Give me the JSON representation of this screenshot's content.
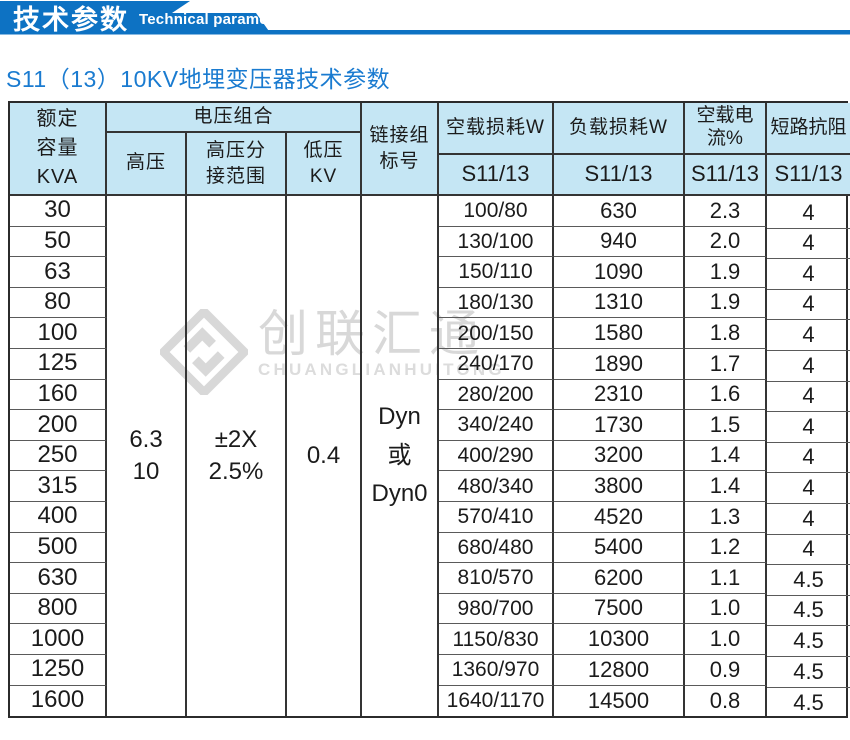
{
  "banner": {
    "title": "技术参数",
    "subtitle_en": "Technical parameter"
  },
  "page_title": "S11（13）10KV地埋变压器技术参数",
  "colors": {
    "banner_blue": "#0d72c3",
    "subtitle_blue": "#1a7bd0",
    "header_bg": "#c5e6f4",
    "border_dark": "#343434",
    "watermark_gray": "#d8d8d8"
  },
  "watermark": {
    "cn": "创联汇通",
    "en": "CHUANGLIANHUITONG"
  },
  "table": {
    "header": {
      "capacity": "额定\n容量\nKVA",
      "voltage_group": "电压组合",
      "hv": "高压",
      "hv_tap": "高压分\n接范围",
      "lv": "低压\nKV",
      "vector": "链接组\n标号",
      "noload_loss": "空载损耗W",
      "load_loss": "负载损耗W",
      "noload_current": "空载电流%",
      "impedance": "短路抗阻",
      "model": "S11/13"
    },
    "merged": {
      "hv": "6.3\n10",
      "hv_tap": "±2X\n2.5%",
      "lv": "0.4",
      "vector": "Dyn\n或\nDyn0"
    },
    "rows": [
      {
        "kva": "30",
        "noload": "100/80",
        "load": "630",
        "current": "2.3",
        "impedance": "4"
      },
      {
        "kva": "50",
        "noload": "130/100",
        "load": "940",
        "current": "2.0",
        "impedance": "4"
      },
      {
        "kva": "63",
        "noload": "150/110",
        "load": "1090",
        "current": "1.9",
        "impedance": "4"
      },
      {
        "kva": "80",
        "noload": "180/130",
        "load": "1310",
        "current": "1.9",
        "impedance": "4"
      },
      {
        "kva": "100",
        "noload": "200/150",
        "load": "1580",
        "current": "1.8",
        "impedance": "4"
      },
      {
        "kva": "125",
        "noload": "240/170",
        "load": "1890",
        "current": "1.7",
        "impedance": "4"
      },
      {
        "kva": "160",
        "noload": "280/200",
        "load": "2310",
        "current": "1.6",
        "impedance": "4"
      },
      {
        "kva": "200",
        "noload": "340/240",
        "load": "1730",
        "current": "1.5",
        "impedance": "4"
      },
      {
        "kva": "250",
        "noload": "400/290",
        "load": "3200",
        "current": "1.4",
        "impedance": "4"
      },
      {
        "kva": "315",
        "noload": "480/340",
        "load": "3800",
        "current": "1.4",
        "impedance": "4"
      },
      {
        "kva": "400",
        "noload": "570/410",
        "load": "4520",
        "current": "1.3",
        "impedance": "4"
      },
      {
        "kva": "500",
        "noload": "680/480",
        "load": "5400",
        "current": "1.2",
        "impedance": "4"
      },
      {
        "kva": "630",
        "noload": "810/570",
        "load": "6200",
        "current": "1.1",
        "impedance": "4.5"
      },
      {
        "kva": "800",
        "noload": "980/700",
        "load": "7500",
        "current": "1.0",
        "impedance": "4.5"
      },
      {
        "kva": "1000",
        "noload": "1150/830",
        "load": "10300",
        "current": "1.0",
        "impedance": "4.5"
      },
      {
        "kva": "1250",
        "noload": "1360/970",
        "load": "12800",
        "current": "0.9",
        "impedance": "4.5"
      },
      {
        "kva": "1600",
        "noload": "1640/1170",
        "load": "14500",
        "current": "0.8",
        "impedance": "4.5"
      }
    ]
  }
}
